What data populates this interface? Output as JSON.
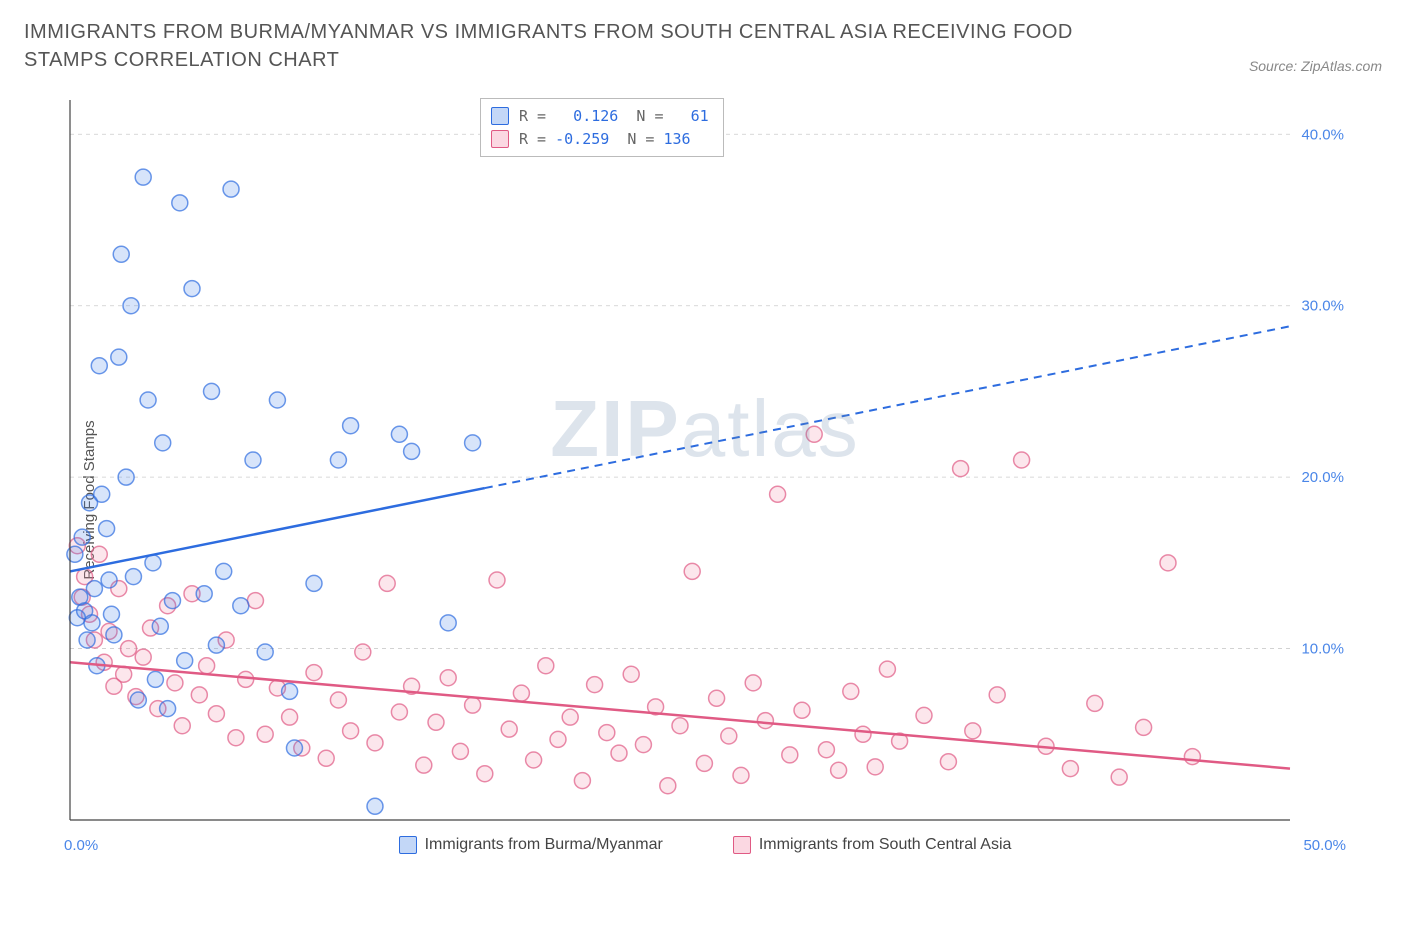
{
  "title": "IMMIGRANTS FROM BURMA/MYANMAR VS IMMIGRANTS FROM SOUTH CENTRAL ASIA RECEIVING FOOD STAMPS CORRELATION CHART",
  "source": "Source: ZipAtlas.com",
  "ylabel": "Receiving Food Stamps",
  "watermark_bold": "ZIP",
  "watermark_rest": "atlas",
  "chart": {
    "type": "scatter",
    "background_color": "#ffffff",
    "grid_color": "#cccccc",
    "xlim": [
      0,
      50
    ],
    "ylim": [
      0,
      42
    ],
    "ytick_values": [
      10,
      20,
      30,
      40
    ],
    "ytick_labels": [
      "10.0%",
      "20.0%",
      "30.0%",
      "40.0%"
    ],
    "xtick_label_left": "0.0%",
    "xtick_label_right": "50.0%",
    "marker_radius": 8,
    "marker_fill_opacity": 0.22,
    "marker_stroke_width": 1.5,
    "series": [
      {
        "id": "burma",
        "label": "Immigrants from Burma/Myanmar",
        "color": "#4a86e8",
        "stroke": "#2d6cdf",
        "R": "0.126",
        "N": "61",
        "regression": {
          "x1": 0,
          "y1": 14.5,
          "x2": 50,
          "y2": 28.8,
          "solid_until_x": 17
        },
        "points": [
          [
            0.2,
            15.5
          ],
          [
            0.3,
            11.8
          ],
          [
            0.4,
            13.0
          ],
          [
            0.5,
            16.5
          ],
          [
            0.6,
            12.2
          ],
          [
            0.7,
            10.5
          ],
          [
            0.8,
            18.5
          ],
          [
            0.9,
            11.5
          ],
          [
            1.0,
            13.5
          ],
          [
            1.1,
            9.0
          ],
          [
            1.2,
            26.5
          ],
          [
            1.3,
            19.0
          ],
          [
            1.5,
            17.0
          ],
          [
            1.6,
            14.0
          ],
          [
            1.7,
            12.0
          ],
          [
            1.8,
            10.8
          ],
          [
            2.0,
            27.0
          ],
          [
            2.1,
            33.0
          ],
          [
            2.3,
            20.0
          ],
          [
            2.5,
            30.0
          ],
          [
            2.6,
            14.2
          ],
          [
            2.8,
            7.0
          ],
          [
            3.0,
            37.5
          ],
          [
            3.2,
            24.5
          ],
          [
            3.4,
            15.0
          ],
          [
            3.5,
            8.2
          ],
          [
            3.7,
            11.3
          ],
          [
            3.8,
            22.0
          ],
          [
            4.0,
            6.5
          ],
          [
            4.2,
            12.8
          ],
          [
            4.5,
            36.0
          ],
          [
            4.7,
            9.3
          ],
          [
            5.0,
            31.0
          ],
          [
            5.5,
            13.2
          ],
          [
            5.8,
            25.0
          ],
          [
            6.0,
            10.2
          ],
          [
            6.3,
            14.5
          ],
          [
            6.6,
            36.8
          ],
          [
            7.0,
            12.5
          ],
          [
            7.5,
            21.0
          ],
          [
            8.0,
            9.8
          ],
          [
            8.5,
            24.5
          ],
          [
            9.0,
            7.5
          ],
          [
            9.2,
            4.2
          ],
          [
            10.0,
            13.8
          ],
          [
            11.0,
            21.0
          ],
          [
            11.5,
            23.0
          ],
          [
            12.5,
            0.8
          ],
          [
            13.5,
            22.5
          ],
          [
            14.0,
            21.5
          ],
          [
            15.5,
            11.5
          ],
          [
            16.5,
            22.0
          ]
        ]
      },
      {
        "id": "sca",
        "label": "Immigrants from South Central Asia",
        "color": "#f28ba9",
        "stroke": "#e05a84",
        "R": "-0.259",
        "N": "136",
        "regression": {
          "x1": 0,
          "y1": 9.2,
          "x2": 50,
          "y2": 3.0,
          "solid_until_x": 50
        },
        "points": [
          [
            0.3,
            16.0
          ],
          [
            0.5,
            13.0
          ],
          [
            0.6,
            14.2
          ],
          [
            0.8,
            12.0
          ],
          [
            1.0,
            10.5
          ],
          [
            1.2,
            15.5
          ],
          [
            1.4,
            9.2
          ],
          [
            1.6,
            11.0
          ],
          [
            1.8,
            7.8
          ],
          [
            2.0,
            13.5
          ],
          [
            2.2,
            8.5
          ],
          [
            2.4,
            10.0
          ],
          [
            2.7,
            7.2
          ],
          [
            3.0,
            9.5
          ],
          [
            3.3,
            11.2
          ],
          [
            3.6,
            6.5
          ],
          [
            4.0,
            12.5
          ],
          [
            4.3,
            8.0
          ],
          [
            4.6,
            5.5
          ],
          [
            5.0,
            13.2
          ],
          [
            5.3,
            7.3
          ],
          [
            5.6,
            9.0
          ],
          [
            6.0,
            6.2
          ],
          [
            6.4,
            10.5
          ],
          [
            6.8,
            4.8
          ],
          [
            7.2,
            8.2
          ],
          [
            7.6,
            12.8
          ],
          [
            8.0,
            5.0
          ],
          [
            8.5,
            7.7
          ],
          [
            9.0,
            6.0
          ],
          [
            9.5,
            4.2
          ],
          [
            10.0,
            8.6
          ],
          [
            10.5,
            3.6
          ],
          [
            11.0,
            7.0
          ],
          [
            11.5,
            5.2
          ],
          [
            12.0,
            9.8
          ],
          [
            12.5,
            4.5
          ],
          [
            13.0,
            13.8
          ],
          [
            13.5,
            6.3
          ],
          [
            14.0,
            7.8
          ],
          [
            14.5,
            3.2
          ],
          [
            15.0,
            5.7
          ],
          [
            15.5,
            8.3
          ],
          [
            16.0,
            4.0
          ],
          [
            16.5,
            6.7
          ],
          [
            17.0,
            2.7
          ],
          [
            17.5,
            14.0
          ],
          [
            18.0,
            5.3
          ],
          [
            18.5,
            7.4
          ],
          [
            19.0,
            3.5
          ],
          [
            19.5,
            9.0
          ],
          [
            20.0,
            4.7
          ],
          [
            20.5,
            6.0
          ],
          [
            21.0,
            2.3
          ],
          [
            21.5,
            7.9
          ],
          [
            22.0,
            5.1
          ],
          [
            22.5,
            3.9
          ],
          [
            23.0,
            8.5
          ],
          [
            23.5,
            4.4
          ],
          [
            24.0,
            6.6
          ],
          [
            24.5,
            2.0
          ],
          [
            25.0,
            5.5
          ],
          [
            25.5,
            14.5
          ],
          [
            26.0,
            3.3
          ],
          [
            26.5,
            7.1
          ],
          [
            27.0,
            4.9
          ],
          [
            27.5,
            2.6
          ],
          [
            28.0,
            8.0
          ],
          [
            28.5,
            5.8
          ],
          [
            29.0,
            19.0
          ],
          [
            29.5,
            3.8
          ],
          [
            30.0,
            6.4
          ],
          [
            30.5,
            22.5
          ],
          [
            31.0,
            4.1
          ],
          [
            31.5,
            2.9
          ],
          [
            32.0,
            7.5
          ],
          [
            32.5,
            5.0
          ],
          [
            33.0,
            3.1
          ],
          [
            33.5,
            8.8
          ],
          [
            34.0,
            4.6
          ],
          [
            35.0,
            6.1
          ],
          [
            36.0,
            3.4
          ],
          [
            36.5,
            20.5
          ],
          [
            37.0,
            5.2
          ],
          [
            38.0,
            7.3
          ],
          [
            39.0,
            21.0
          ],
          [
            40.0,
            4.3
          ],
          [
            41.0,
            3.0
          ],
          [
            42.0,
            6.8
          ],
          [
            43.0,
            2.5
          ],
          [
            44.0,
            5.4
          ],
          [
            45.0,
            15.0
          ],
          [
            46.0,
            3.7
          ]
        ]
      }
    ]
  },
  "legend_top": {
    "r_label": "R =",
    "n_label": "N ="
  }
}
